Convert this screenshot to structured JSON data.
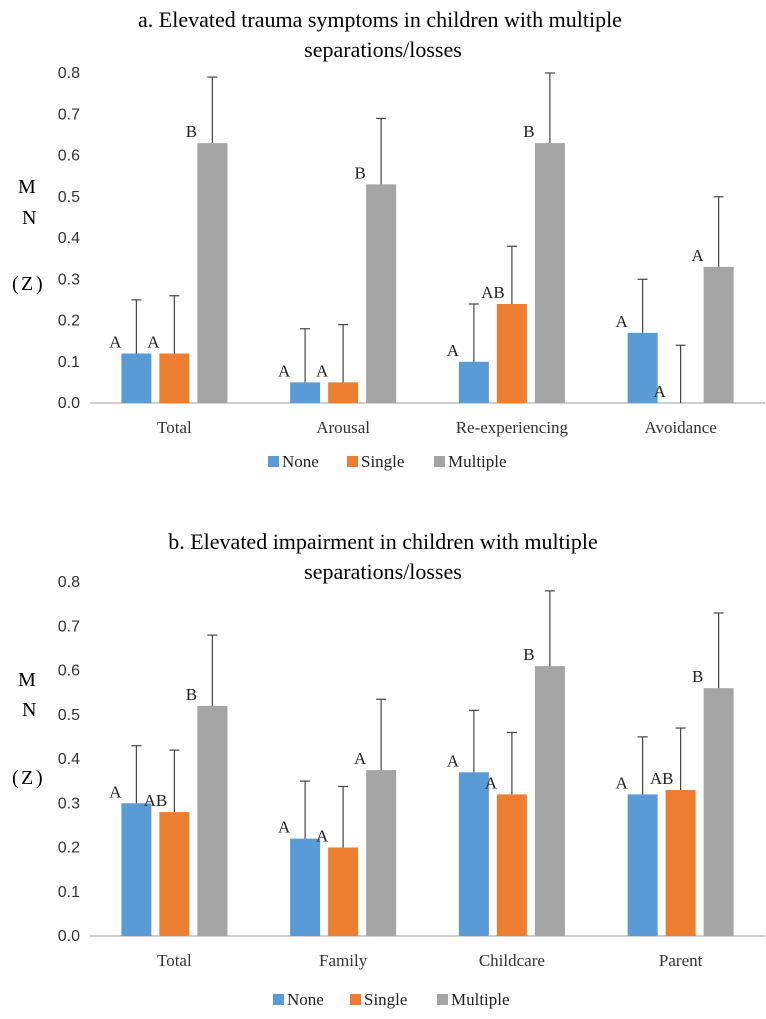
{
  "colors": {
    "None": "#5b9bd5",
    "Single": "#ed7d31",
    "Multiple": "#a5a5a5",
    "error_bar": "#444444",
    "axis": "#bfbfbf"
  },
  "chart_data": [
    {
      "type": "bar",
      "title_lines": [
        "a. Elevated trauma symptoms in children with multiple",
        "separations/losses"
      ],
      "ylabel_chars": [
        "M",
        "N",
        "(",
        "Z",
        ")"
      ],
      "ylim": [
        0,
        0.8
      ],
      "yticks": [
        "0.0",
        "0.1",
        "0.2",
        "0.3",
        "0.4",
        "0.5",
        "0.6",
        "0.7",
        "0.8"
      ],
      "categories": [
        "Total",
        "Arousal",
        "Re-experiencing",
        "Avoidance"
      ],
      "series": [
        {
          "name": "None",
          "values": [
            0.12,
            0.05,
            0.1,
            0.17
          ],
          "errors": [
            0.13,
            0.13,
            0.14,
            0.13
          ],
          "letters": [
            "A",
            "A",
            "A",
            "A"
          ]
        },
        {
          "name": "Single",
          "values": [
            0.12,
            0.05,
            0.24,
            0.0
          ],
          "errors": [
            0.14,
            0.14,
            0.14,
            0.14
          ],
          "letters": [
            "A",
            "A",
            "AB",
            "A"
          ]
        },
        {
          "name": "Multiple",
          "values": [
            0.63,
            0.53,
            0.63,
            0.33
          ],
          "errors": [
            0.16,
            0.16,
            0.17,
            0.17
          ],
          "letters": [
            "B",
            "B",
            "B",
            "A"
          ]
        }
      ],
      "legend": [
        "None",
        "Single",
        "Multiple"
      ],
      "legend_position": "bottom",
      "grid": false
    },
    {
      "type": "bar",
      "title_lines": [
        "b. Elevated impairment in children with multiple",
        "separations/losses"
      ],
      "ylabel_chars": [
        "M",
        "N",
        "(",
        "Z",
        ")"
      ],
      "ylim": [
        0,
        0.8
      ],
      "yticks": [
        "0.0",
        "0.1",
        "0.2",
        "0.3",
        "0.4",
        "0.5",
        "0.6",
        "0.7",
        "0.8"
      ],
      "categories": [
        "Total",
        "Family",
        "Childcare",
        "Parent"
      ],
      "series": [
        {
          "name": "None",
          "values": [
            0.3,
            0.22,
            0.37,
            0.32
          ],
          "errors": [
            0.13,
            0.13,
            0.14,
            0.13
          ],
          "letters": [
            "A",
            "A",
            "A",
            "A"
          ]
        },
        {
          "name": "Single",
          "values": [
            0.28,
            0.2,
            0.32,
            0.33
          ],
          "errors": [
            0.14,
            0.138,
            0.14,
            0.14
          ],
          "letters": [
            "AB",
            "A",
            "A",
            "AB"
          ]
        },
        {
          "name": "Multiple",
          "values": [
            0.52,
            0.375,
            0.61,
            0.56
          ],
          "errors": [
            0.16,
            0.16,
            0.17,
            0.17
          ],
          "letters": [
            "B",
            "A",
            "B",
            "B"
          ]
        }
      ],
      "legend": [
        "None",
        "Single",
        "Multiple"
      ],
      "legend_position": "bottom",
      "grid": false
    }
  ]
}
